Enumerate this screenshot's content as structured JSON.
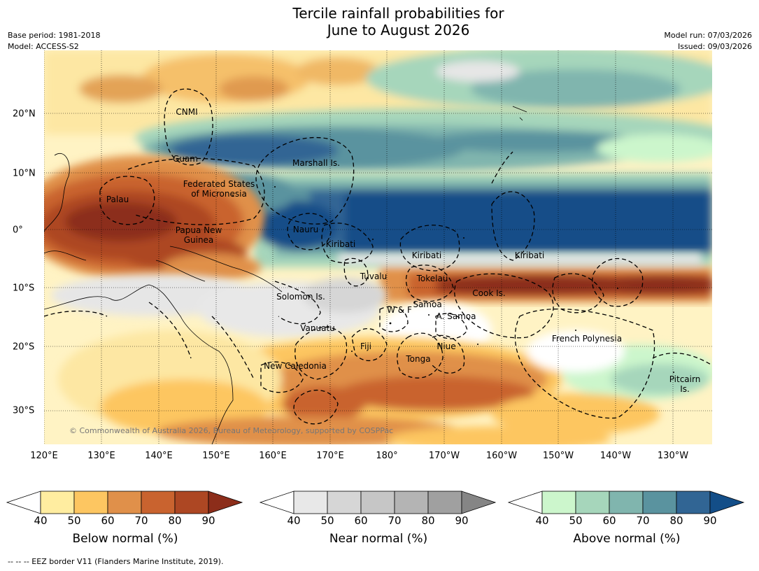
{
  "title": {
    "line1": "Tercile rainfall probabilities for",
    "line2": "June to August 2026"
  },
  "meta": {
    "base_period": "Base period: 1981-2018",
    "model": "Model: ACCESS-S2",
    "model_run": "Model run: 07/03/2026",
    "issued": "Issued: 09/03/2026"
  },
  "map": {
    "lat_labels": [
      "20°N",
      "10°N",
      "0°",
      "10°S",
      "20°S",
      "30°S"
    ],
    "lon_labels": [
      "120°E",
      "130°E",
      "140°E",
      "150°E",
      "160°E",
      "170°E",
      "180°",
      "170°W",
      "160°W",
      "150°W",
      "140°W",
      "130°W"
    ],
    "places": [
      "CNMI",
      "Guam",
      "Marshall Is.",
      "Federated States\nof Micronesia",
      "Palau",
      "Papua New\nGuinea",
      "Nauru",
      "Kiribati",
      "Kiribati",
      "Kiribati",
      "Tuvalu",
      "Tokelau",
      "Cook Is.",
      "Solomon Is.",
      "W & F",
      "Samoa",
      "A. Samoa",
      "Vanuatu",
      "Fiji",
      "Niue",
      "French Polynesia",
      "Tonga",
      "New Caledonia",
      "Pitcairn\nIs."
    ],
    "copyright": "© Commonwealth of Australia 2026, Bureau of Meteorology, supported by COSPPac"
  },
  "colorbars": {
    "ticks": [
      "40",
      "50",
      "60",
      "70",
      "80",
      "90"
    ],
    "below": {
      "label": "Below normal (%)",
      "colors": [
        "#ffeda0",
        "#fdc661",
        "#e0904a",
        "#c9632f",
        "#ad4723",
        "#8c2d1a"
      ]
    },
    "near": {
      "label": "Near normal (%)",
      "colors": [
        "#e8e8e8",
        "#d6d6d6",
        "#c6c6c6",
        "#b4b4b4",
        "#a0a0a0",
        "#858585"
      ]
    },
    "above": {
      "label": "Above normal (%)",
      "colors": [
        "#ccf6cc",
        "#a6d6bb",
        "#80b5ae",
        "#5a939f",
        "#316594",
        "#134e88"
      ]
    }
  },
  "footnote": "-- -- -- EEZ border V11 (Flanders Marine Institute, 2019)."
}
